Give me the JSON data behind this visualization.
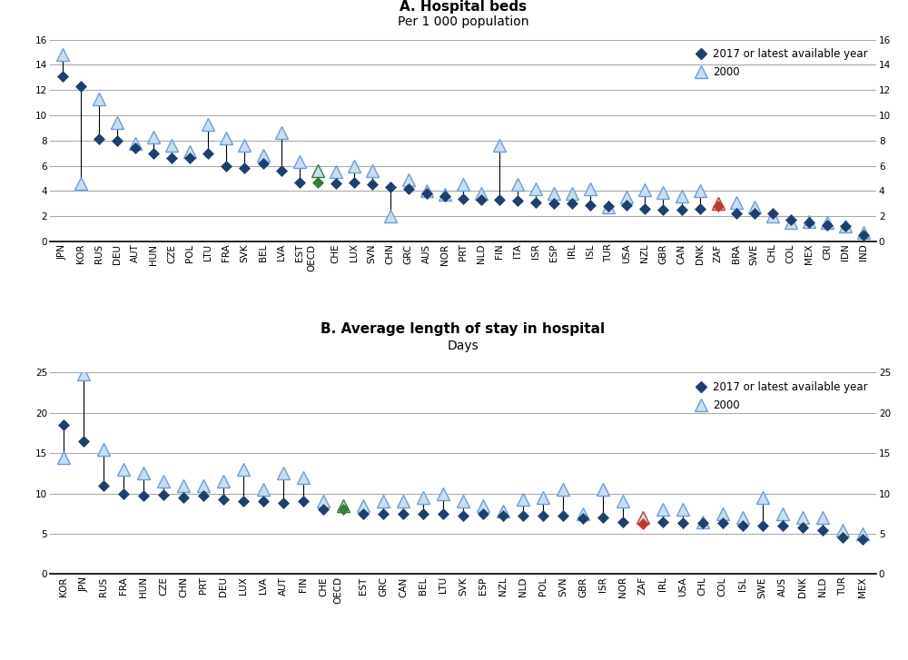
{
  "panel_a": {
    "title": "A. Hospital beds",
    "subtitle": "Per 1 000 population",
    "ylim": [
      0,
      16
    ],
    "yticks": [
      0,
      2,
      4,
      6,
      8,
      10,
      12,
      14,
      16
    ],
    "countries": [
      "JPN",
      "KOR",
      "RUS",
      "DEU",
      "AUT",
      "HUN",
      "CZE",
      "POL",
      "LTU",
      "FRA",
      "SVK",
      "BEL",
      "LVA",
      "EST",
      "OECD",
      "CHE",
      "LUX",
      "SVN",
      "CHN",
      "GRC",
      "AUS",
      "NOR",
      "PRT",
      "NLD",
      "FIN",
      "ITA",
      "ISR",
      "ESP",
      "IRL",
      "ISL",
      "TUR",
      "USA",
      "NZL",
      "GBR",
      "CAN",
      "DNK",
      "ZAF",
      "BRA",
      "SWE",
      "CHL",
      "COL",
      "MEX",
      "CRI",
      "IDN",
      "IND"
    ],
    "val2017": [
      13.1,
      12.3,
      8.1,
      8.0,
      7.4,
      7.0,
      6.6,
      6.6,
      7.0,
      6.0,
      5.8,
      6.2,
      5.6,
      4.7,
      4.7,
      4.6,
      4.7,
      4.5,
      4.3,
      4.2,
      3.8,
      3.6,
      3.4,
      3.3,
      3.3,
      3.2,
      3.1,
      3.0,
      3.0,
      2.9,
      2.8,
      2.9,
      2.6,
      2.5,
      2.5,
      2.6,
      2.8,
      2.2,
      2.2,
      2.2,
      1.7,
      1.5,
      1.3,
      1.2,
      0.5
    ],
    "val2000": [
      14.8,
      4.6,
      11.3,
      9.4,
      7.8,
      8.3,
      7.6,
      7.1,
      9.3,
      8.2,
      7.6,
      6.8,
      8.6,
      6.3,
      5.6,
      5.5,
      6.0,
      5.6,
      2.0,
      4.9,
      4.0,
      3.7,
      4.5,
      3.8,
      7.6,
      4.5,
      4.2,
      3.8,
      3.8,
      4.2,
      2.7,
      3.5,
      4.1,
      3.9,
      3.6,
      4.0,
      3.0,
      3.1,
      2.7,
      2.0,
      1.5,
      1.6,
      1.5,
      1.2,
      0.7
    ],
    "color2017": [
      "#1f3f6e",
      "#1f3f6e",
      "#1f3f6e",
      "#1f3f6e",
      "#1f3f6e",
      "#1f3f6e",
      "#1f3f6e",
      "#1f3f6e",
      "#1f3f6e",
      "#1f3f6e",
      "#1f3f6e",
      "#1f3f6e",
      "#1f3f6e",
      "#1f3f6e",
      "#3a7a3a",
      "#1f3f6e",
      "#1f3f6e",
      "#1f3f6e",
      "#1f3f6e",
      "#1f3f6e",
      "#1f3f6e",
      "#1f3f6e",
      "#1f3f6e",
      "#1f3f6e",
      "#1f3f6e",
      "#1f3f6e",
      "#1f3f6e",
      "#1f3f6e",
      "#1f3f6e",
      "#1f3f6e",
      "#1f3f6e",
      "#1f3f6e",
      "#1f3f6e",
      "#1f3f6e",
      "#1f3f6e",
      "#1f3f6e",
      "#c0392b",
      "#1f3f6e",
      "#1f3f6e",
      "#1f3f6e",
      "#1f3f6e",
      "#1f3f6e",
      "#1f3f6e",
      "#1f3f6e",
      "#1f3f6e"
    ],
    "color2000": [
      "#6a9fd8",
      "#6a9fd8",
      "#6a9fd8",
      "#6a9fd8",
      "#6a9fd8",
      "#6a9fd8",
      "#6a9fd8",
      "#6a9fd8",
      "#6a9fd8",
      "#6a9fd8",
      "#6a9fd8",
      "#6a9fd8",
      "#6a9fd8",
      "#6a9fd8",
      "#3a7a3a",
      "#6a9fd8",
      "#6a9fd8",
      "#6a9fd8",
      "#6a9fd8",
      "#6a9fd8",
      "#6a9fd8",
      "#6a9fd8",
      "#6a9fd8",
      "#6a9fd8",
      "#6a9fd8",
      "#6a9fd8",
      "#6a9fd8",
      "#6a9fd8",
      "#6a9fd8",
      "#6a9fd8",
      "#6a9fd8",
      "#6a9fd8",
      "#6a9fd8",
      "#6a9fd8",
      "#6a9fd8",
      "#6a9fd8",
      "#c0392b",
      "#6a9fd8",
      "#6a9fd8",
      "#6a9fd8",
      "#6a9fd8",
      "#6a9fd8",
      "#6a9fd8",
      "#6a9fd8",
      "#6a9fd8"
    ],
    "oecd_idx": 14
  },
  "panel_b": {
    "title": "B. Average length of stay in hospital",
    "subtitle": "Days",
    "ylim": [
      0,
      25
    ],
    "yticks": [
      0,
      5,
      10,
      15,
      20,
      25
    ],
    "countries": [
      "KOR",
      "JPN",
      "RUS",
      "FRA",
      "HUN",
      "CZE",
      "CHN",
      "PRT",
      "DEU",
      "LUX",
      "LVA",
      "AUT",
      "FIN",
      "CHE",
      "OECD",
      "EST",
      "GRC",
      "CAN",
      "BEL",
      "LTU",
      "SVK",
      "ESP",
      "NZL",
      "NLD",
      "POL",
      "SVN",
      "GBR",
      "ISR",
      "NOR",
      "ZAF",
      "IRL",
      "USA",
      "CHL",
      "COL",
      "ISL",
      "SWE",
      "AUS",
      "DNK",
      "NLD",
      "TUR",
      "MEX"
    ],
    "val2017": [
      18.5,
      16.5,
      11.0,
      10.0,
      9.7,
      9.8,
      9.5,
      9.7,
      9.3,
      9.0,
      9.0,
      8.8,
      9.0,
      8.0,
      8.0,
      7.5,
      7.5,
      7.5,
      7.5,
      7.5,
      7.3,
      7.5,
      7.3,
      7.3,
      7.2,
      7.3,
      6.9,
      7.0,
      6.5,
      6.2,
      6.5,
      6.4,
      6.3,
      6.3,
      6.0,
      6.0,
      6.0,
      5.8,
      5.5,
      4.5,
      4.3
    ],
    "val2000": [
      14.5,
      24.8,
      15.5,
      13.0,
      12.5,
      11.5,
      11.0,
      11.0,
      11.5,
      13.0,
      10.5,
      12.5,
      12.0,
      9.0,
      8.5,
      8.5,
      9.0,
      9.0,
      9.5,
      10.0,
      9.0,
      8.5,
      7.8,
      9.3,
      9.5,
      10.5,
      7.5,
      10.5,
      9.0,
      7.0,
      8.0,
      8.0,
      6.5,
      7.5,
      7.0,
      9.5,
      7.5,
      7.0,
      7.0,
      5.5,
      5.0
    ],
    "color2017": [
      "#1f3f6e",
      "#1f3f6e",
      "#1f3f6e",
      "#1f3f6e",
      "#1f3f6e",
      "#1f3f6e",
      "#1f3f6e",
      "#1f3f6e",
      "#1f3f6e",
      "#1f3f6e",
      "#1f3f6e",
      "#1f3f6e",
      "#1f3f6e",
      "#1f3f6e",
      "#3a7a3a",
      "#1f3f6e",
      "#1f3f6e",
      "#1f3f6e",
      "#1f3f6e",
      "#1f3f6e",
      "#1f3f6e",
      "#1f3f6e",
      "#1f3f6e",
      "#1f3f6e",
      "#1f3f6e",
      "#1f3f6e",
      "#1f3f6e",
      "#1f3f6e",
      "#1f3f6e",
      "#c0392b",
      "#1f3f6e",
      "#1f3f6e",
      "#1f3f6e",
      "#1f3f6e",
      "#1f3f6e",
      "#1f3f6e",
      "#1f3f6e",
      "#1f3f6e",
      "#1f3f6e",
      "#1f3f6e",
      "#1f3f6e"
    ],
    "color2000": [
      "#6a9fd8",
      "#6a9fd8",
      "#6a9fd8",
      "#6a9fd8",
      "#6a9fd8",
      "#6a9fd8",
      "#6a9fd8",
      "#6a9fd8",
      "#6a9fd8",
      "#6a9fd8",
      "#6a9fd8",
      "#6a9fd8",
      "#6a9fd8",
      "#6a9fd8",
      "#3a7a3a",
      "#6a9fd8",
      "#6a9fd8",
      "#6a9fd8",
      "#6a9fd8",
      "#6a9fd8",
      "#6a9fd8",
      "#6a9fd8",
      "#6a9fd8",
      "#6a9fd8",
      "#6a9fd8",
      "#6a9fd8",
      "#6a9fd8",
      "#6a9fd8",
      "#6a9fd8",
      "#c0392b",
      "#6a9fd8",
      "#6a9fd8",
      "#6a9fd8",
      "#6a9fd8",
      "#6a9fd8",
      "#6a9fd8",
      "#6a9fd8",
      "#6a9fd8",
      "#6a9fd8",
      "#6a9fd8",
      "#6a9fd8"
    ],
    "oecd_idx": 14
  },
  "legend_label_2017": "2017 or latest available year",
  "legend_label_2000": "2000",
  "background_color": "#ffffff",
  "grid_color": "#aaaaaa",
  "line_color": "#000000",
  "title_fontsize": 11,
  "subtitle_fontsize": 10,
  "label_fontsize": 8.5,
  "tick_fontsize": 7.5
}
